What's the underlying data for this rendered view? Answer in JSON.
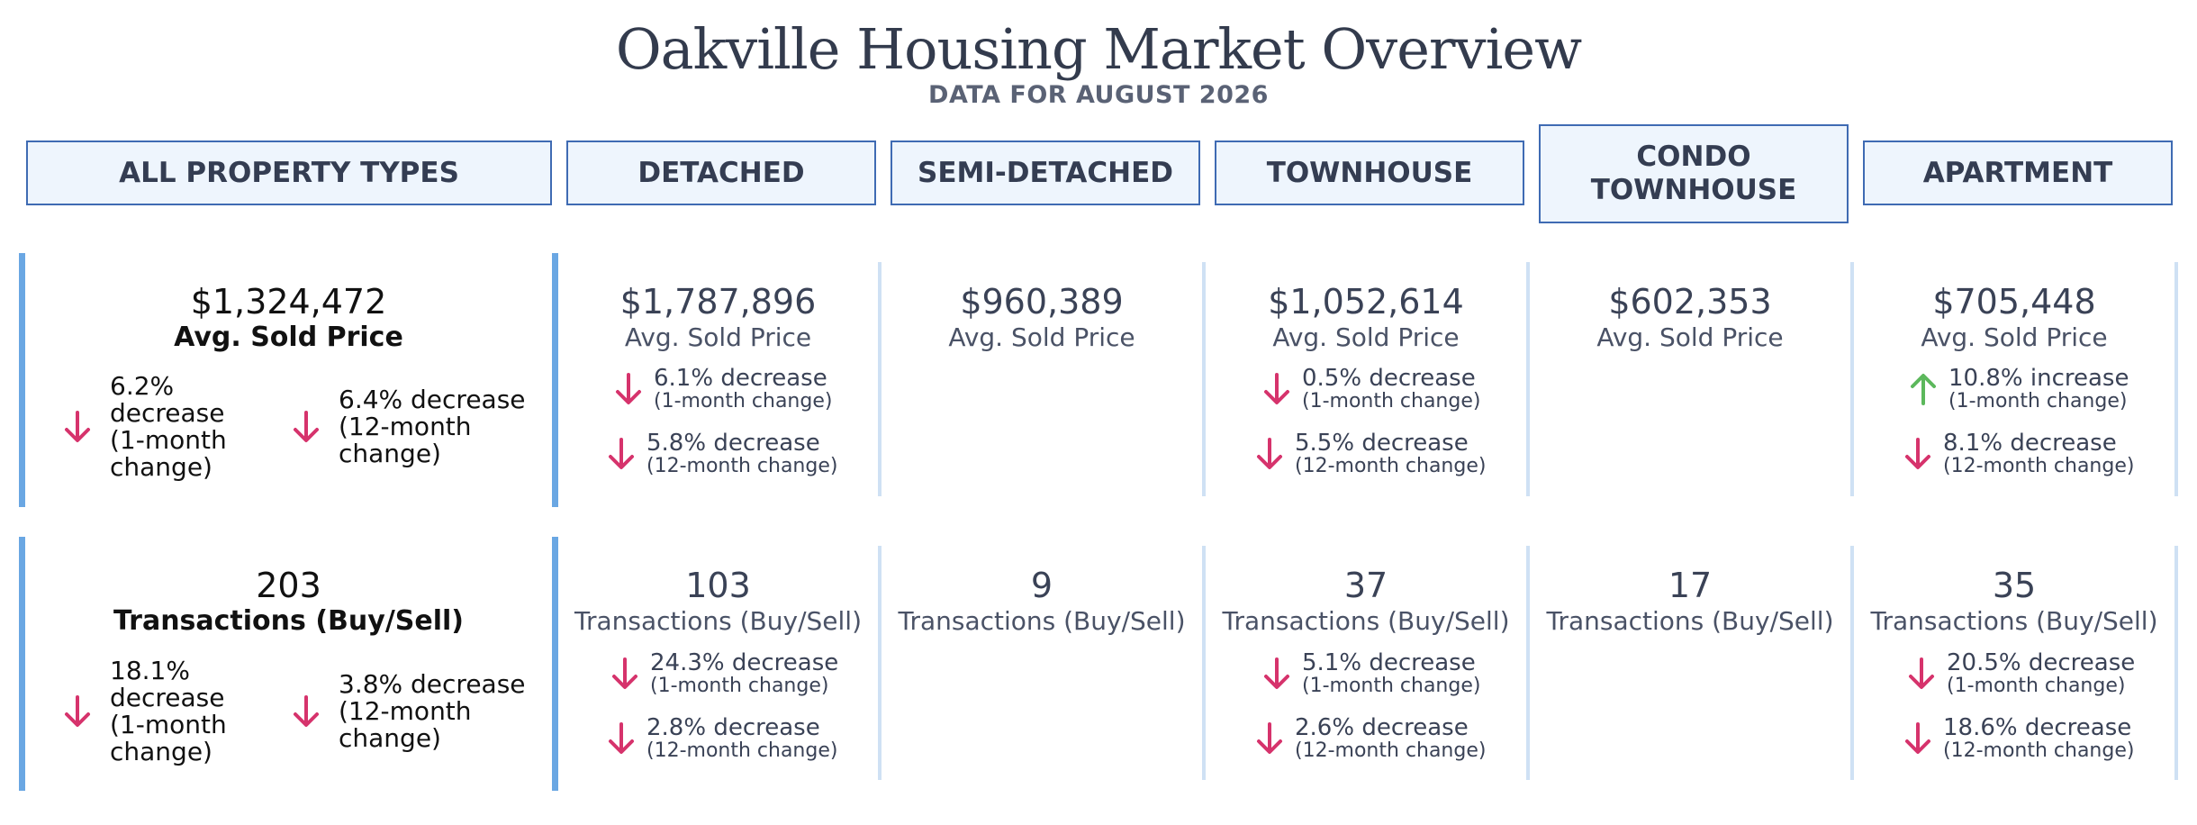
{
  "header": {
    "title": "Oakville Housing Market Overview",
    "subtitle": "DATA FOR AUGUST 2026"
  },
  "colors": {
    "decrease": "#d6336c",
    "increase": "#5cb85c",
    "accent_bar": "#6aa7e3",
    "tab_border": "#3f6bb3"
  },
  "tabs": [
    {
      "label": "ALL PROPERTY TYPES"
    },
    {
      "label": "DETACHED"
    },
    {
      "label": "SEMI-DETACHED"
    },
    {
      "label": "TOWNHOUSE"
    },
    {
      "label": "CONDO TOWNHOUSE",
      "selected": true
    },
    {
      "label": "APARTMENT"
    }
  ],
  "price": {
    "all": {
      "value": "$1,324,472",
      "label": "Avg. Sold Price",
      "m1": {
        "dir": "down",
        "text": "6.2% decrease (1-month change)"
      },
      "m12": {
        "dir": "down",
        "text": "6.4% decrease (12-month change)"
      }
    },
    "detached": {
      "value": "$1,787,896",
      "label": "Avg. Sold Price",
      "m1": {
        "dir": "down",
        "text": "6.1% decrease",
        "sub": "(1-month change)"
      },
      "m12": {
        "dir": "down",
        "text": "5.8% decrease",
        "sub": "(12-month change)"
      }
    },
    "semi": {
      "value": "$960,389",
      "label": "Avg. Sold Price"
    },
    "town": {
      "value": "$1,052,614",
      "label": "Avg. Sold Price",
      "m1": {
        "dir": "down",
        "text": "0.5% decrease",
        "sub": "(1-month change)"
      },
      "m12": {
        "dir": "down",
        "text": "5.5% decrease",
        "sub": "(12-month change)"
      }
    },
    "condo": {
      "value": "$602,353",
      "label": "Avg. Sold Price"
    },
    "apt": {
      "value": "$705,448",
      "label": "Avg. Sold Price",
      "m1": {
        "dir": "up",
        "text": "10.8% increase",
        "sub": "(1-month change)"
      },
      "m12": {
        "dir": "down",
        "text": "8.1% decrease",
        "sub": "(12-month change)"
      }
    }
  },
  "tx": {
    "all": {
      "value": "203",
      "label": "Transactions (Buy/Sell)",
      "m1": {
        "dir": "down",
        "text": "18.1% decrease (1-month change)"
      },
      "m12": {
        "dir": "down",
        "text": "3.8% decrease (12-month change)"
      }
    },
    "detached": {
      "value": "103",
      "label": "Transactions (Buy/Sell)",
      "m1": {
        "dir": "down",
        "text": "24.3% decrease",
        "sub": "(1-month change)"
      },
      "m12": {
        "dir": "down",
        "text": "2.8% decrease",
        "sub": "(12-month change)"
      }
    },
    "semi": {
      "value": "9",
      "label": "Transactions (Buy/Sell)"
    },
    "town": {
      "value": "37",
      "label": "Transactions (Buy/Sell)",
      "m1": {
        "dir": "down",
        "text": "5.1% decrease",
        "sub": "(1-month change)"
      },
      "m12": {
        "dir": "down",
        "text": "2.6% decrease",
        "sub": "(12-month change)"
      }
    },
    "condo": {
      "value": "17",
      "label": "Transactions (Buy/Sell)"
    },
    "apt": {
      "value": "35",
      "label": "Transactions (Buy/Sell)",
      "m1": {
        "dir": "down",
        "text": "20.5% decrease",
        "sub": "(1-month change)"
      },
      "m12": {
        "dir": "down",
        "text": "18.6% decrease",
        "sub": "(12-month change)"
      }
    }
  }
}
